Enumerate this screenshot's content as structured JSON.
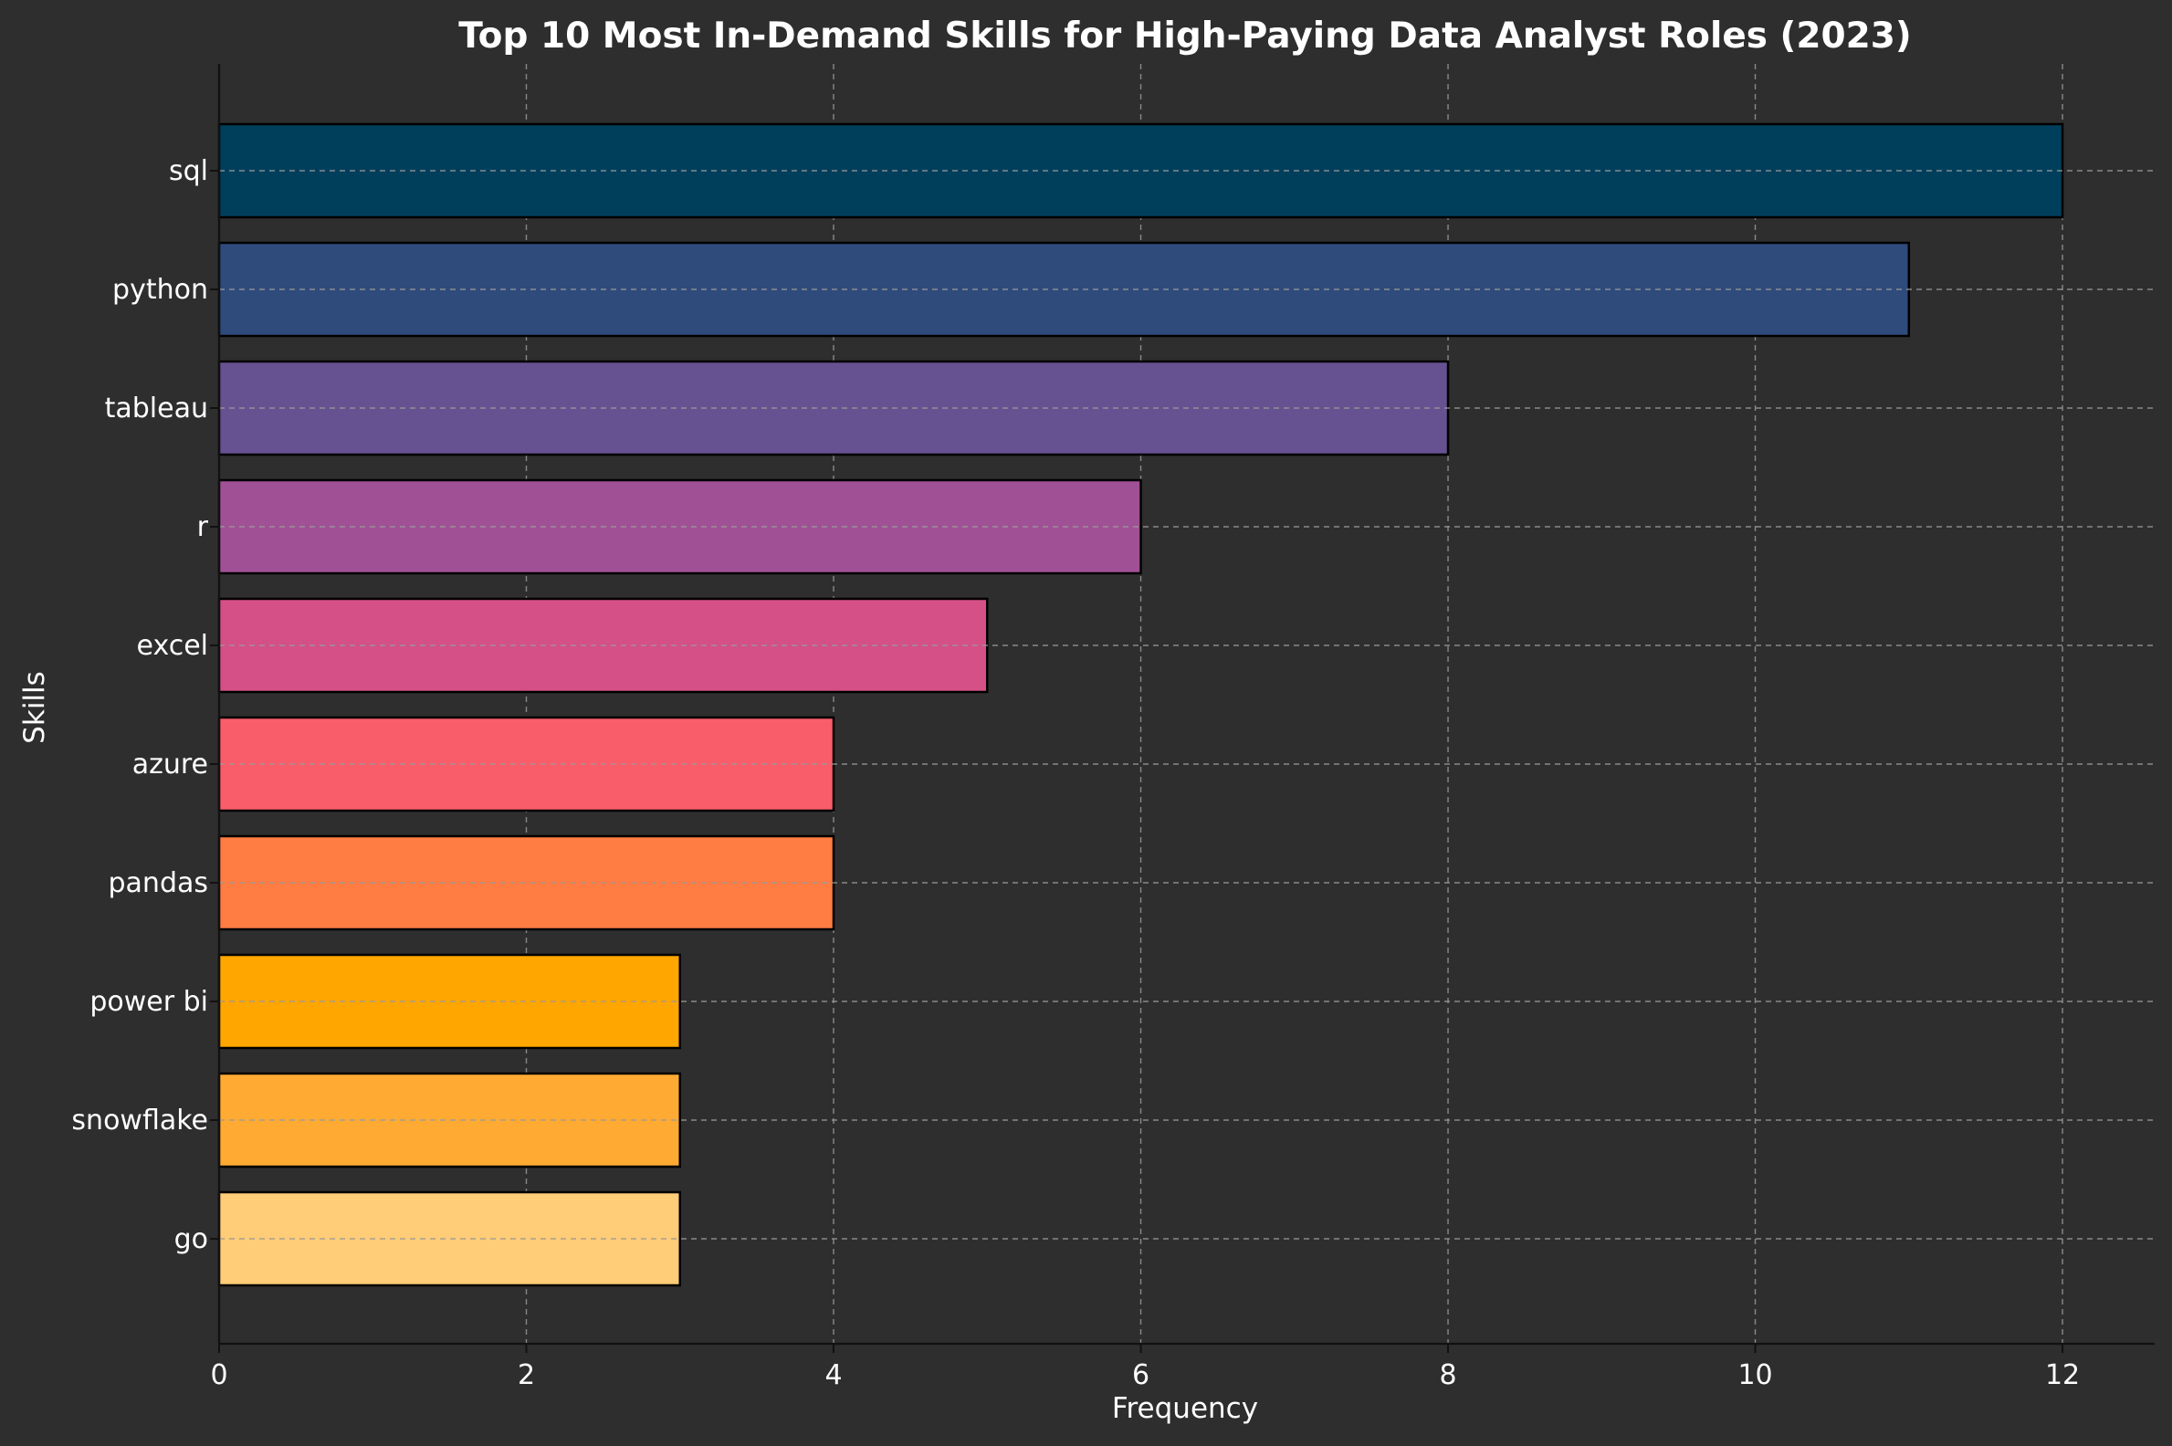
{
  "chart_data": {
    "type": "bar",
    "orientation": "horizontal",
    "title": "Top 10 Most In-Demand Skills for High-Paying Data Analyst Roles (2023)",
    "xlabel": "Frequency",
    "ylabel": "Skills",
    "categories": [
      "sql",
      "python",
      "tableau",
      "r",
      "excel",
      "azure",
      "pandas",
      "power bi",
      "snowflake",
      "go"
    ],
    "values": [
      12,
      11,
      8,
      6,
      5,
      4,
      4,
      3,
      3,
      3
    ],
    "colors": [
      "#003f5c",
      "#2f4b7c",
      "#665191",
      "#a05195",
      "#d45087",
      "#f95d6a",
      "#ff7c43",
      "#ffa600",
      "#ffaa33",
      "#ffcc77"
    ],
    "xlim": [
      0,
      12.6
    ],
    "xticks": [
      0,
      2,
      4,
      6,
      8,
      10,
      12
    ],
    "grid": true,
    "background": "#2e2e2e",
    "text_color": "#ffffff"
  }
}
